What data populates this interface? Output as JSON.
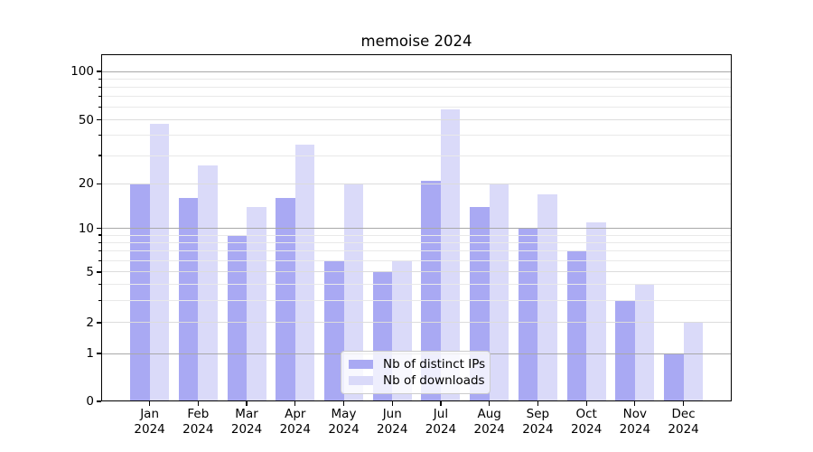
{
  "chart_data": {
    "type": "bar",
    "title": "memoise 2024",
    "categories": [
      "Jan",
      "Feb",
      "Mar",
      "Apr",
      "May",
      "Jun",
      "Jul",
      "Aug",
      "Sep",
      "Oct",
      "Nov",
      "Dec"
    ],
    "year_label": "2024",
    "series": [
      {
        "key": "distinct-ips",
        "name": "Nb of distinct IPs",
        "color": "#a9a9f3",
        "values": [
          20,
          16,
          9,
          16,
          6,
          5,
          21,
          14,
          10,
          7,
          3,
          1
        ]
      },
      {
        "key": "downloads",
        "name": "Nb of downloads",
        "color": "#dadaf9",
        "values": [
          47,
          26,
          14,
          35,
          20,
          6,
          58,
          20,
          17,
          11,
          4,
          2
        ]
      }
    ],
    "xlabel": "",
    "ylabel": "",
    "yscale": "symlog",
    "yticks": [
      0,
      1,
      2,
      5,
      10,
      20,
      50,
      100
    ],
    "minor_gridlines": [
      3,
      4,
      6,
      7,
      8,
      9,
      30,
      40,
      60,
      70,
      80,
      90
    ],
    "ylim": [
      0,
      128
    ],
    "grid": true,
    "legend_position": "lower center"
  },
  "colors": {
    "decade_grid": "#a9a9a9",
    "mid_grid": "#dcdcdc",
    "minor_grid": "#e9e9e9",
    "spine": "#000000",
    "legend_border": "#cccccc"
  }
}
